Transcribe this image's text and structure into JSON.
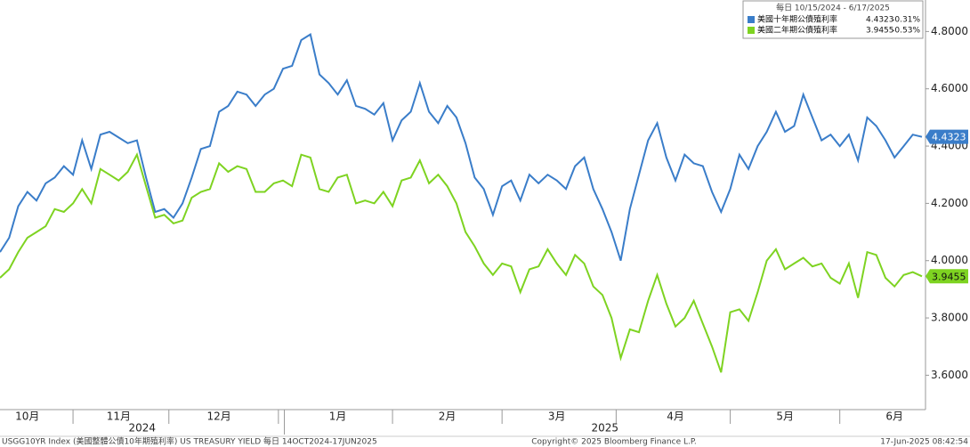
{
  "chart_data": {
    "type": "line",
    "legend_title": "每日 10/15/2024 - 6/17/2025",
    "categories": [
      null,
      null,
      null,
      "10月",
      null,
      null,
      null,
      null,
      null,
      null,
      null,
      null,
      null,
      "11月",
      null,
      null,
      null,
      null,
      null,
      null,
      null,
      null,
      null,
      null,
      "12月",
      null,
      null,
      null,
      null,
      null,
      null,
      null,
      null,
      null,
      null,
      null,
      null,
      "1月",
      null,
      null,
      null,
      null,
      null,
      null,
      null,
      null,
      null,
      null,
      null,
      "2月",
      null,
      null,
      null,
      null,
      null,
      null,
      null,
      null,
      null,
      null,
      null,
      "3月",
      null,
      null,
      null,
      null,
      null,
      null,
      null,
      null,
      null,
      null,
      null,
      null,
      "4月",
      null,
      null,
      null,
      null,
      null,
      null,
      null,
      null,
      null,
      null,
      null,
      "5月",
      null,
      null,
      null,
      null,
      null,
      null,
      null,
      null,
      null,
      null,
      null,
      "6月",
      null,
      null,
      null
    ],
    "years": [
      "2024",
      "2025"
    ],
    "series": [
      {
        "name": "美國十年期公債殖利率",
        "color": "#3a7dc9",
        "change": "-0.31%",
        "values": [
          4.03,
          4.08,
          4.19,
          4.24,
          4.21,
          4.27,
          4.29,
          4.33,
          4.3,
          4.42,
          4.32,
          4.44,
          4.45,
          4.43,
          4.41,
          4.42,
          4.29,
          4.17,
          4.18,
          4.15,
          4.2,
          4.29,
          4.39,
          4.4,
          4.52,
          4.54,
          4.59,
          4.58,
          4.54,
          4.58,
          4.6,
          4.67,
          4.68,
          4.77,
          4.79,
          4.65,
          4.62,
          4.58,
          4.63,
          4.54,
          4.53,
          4.51,
          4.55,
          4.42,
          4.49,
          4.52,
          4.62,
          4.52,
          4.48,
          4.54,
          4.5,
          4.41,
          4.29,
          4.25,
          4.16,
          4.26,
          4.28,
          4.21,
          4.3,
          4.27,
          4.3,
          4.28,
          4.25,
          4.33,
          4.36,
          4.25,
          4.18,
          4.1,
          4.0,
          4.18,
          4.3,
          4.42,
          4.48,
          4.36,
          4.28,
          4.37,
          4.34,
          4.33,
          4.24,
          4.17,
          4.25,
          4.37,
          4.32,
          4.4,
          4.45,
          4.52,
          4.45,
          4.47,
          4.58,
          4.5,
          4.42,
          4.44,
          4.4,
          4.44,
          4.35,
          4.5,
          4.47,
          4.42,
          4.36,
          4.4,
          4.44,
          4.4323
        ]
      },
      {
        "name": "美國二年期公債殖利率",
        "color": "#7ed321",
        "change": "-0.53%",
        "values": [
          3.94,
          3.97,
          4.03,
          4.08,
          4.1,
          4.12,
          4.18,
          4.17,
          4.2,
          4.25,
          4.2,
          4.32,
          4.3,
          4.28,
          4.31,
          4.37,
          4.26,
          4.15,
          4.16,
          4.13,
          4.14,
          4.22,
          4.24,
          4.25,
          4.34,
          4.31,
          4.33,
          4.32,
          4.24,
          4.24,
          4.27,
          4.28,
          4.26,
          4.37,
          4.36,
          4.25,
          4.24,
          4.29,
          4.3,
          4.2,
          4.21,
          4.2,
          4.24,
          4.19,
          4.28,
          4.29,
          4.35,
          4.27,
          4.3,
          4.26,
          4.2,
          4.1,
          4.05,
          3.99,
          3.95,
          3.99,
          3.98,
          3.89,
          3.97,
          3.98,
          4.04,
          3.99,
          3.95,
          4.02,
          3.99,
          3.91,
          3.88,
          3.8,
          3.66,
          3.76,
          3.75,
          3.86,
          3.95,
          3.85,
          3.77,
          3.8,
          3.86,
          3.78,
          3.7,
          3.61,
          3.82,
          3.83,
          3.79,
          3.89,
          4.0,
          4.04,
          3.97,
          3.99,
          4.01,
          3.98,
          3.99,
          3.94,
          3.92,
          3.99,
          3.87,
          4.03,
          4.02,
          3.94,
          3.91,
          3.95,
          3.96,
          3.9455
        ]
      }
    ],
    "ylim": [
      3.48,
      4.91
    ],
    "yticks": [
      {
        "value": 3.6,
        "label": "3.6000"
      },
      {
        "value": 3.8,
        "label": "3.8000"
      },
      {
        "value": 4.0,
        "label": "4.0000"
      },
      {
        "value": 4.2,
        "label": "4.2000"
      },
      {
        "value": 4.4,
        "label": "4.4000"
      },
      {
        "value": 4.6,
        "label": "4.6000"
      },
      {
        "value": 4.8,
        "label": "4.8000"
      }
    ],
    "footer": {
      "left": "USGG10YR Index (美國整體公債10年期殖利率) US TREASURY YIELD  每日 14OCT2024-17JUN2025",
      "center": "Copyright© 2025 Bloomberg Finance L.P.",
      "right": "17-Jun-2025 08:42:54"
    }
  }
}
